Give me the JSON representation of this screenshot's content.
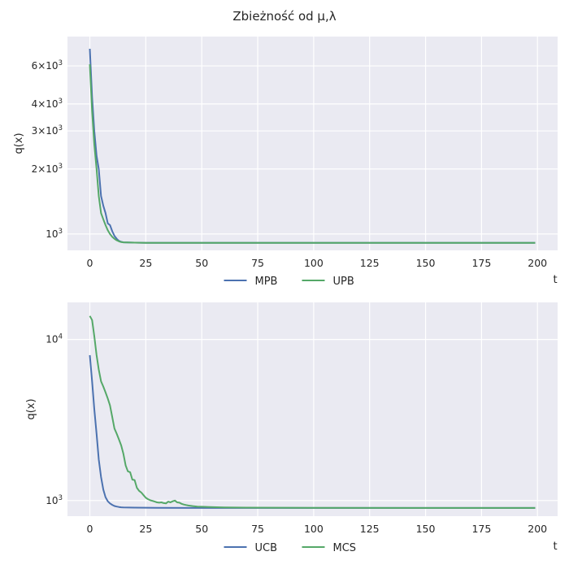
{
  "figure": {
    "title": "Zbieżność od μ,λ"
  },
  "chart_data": [
    {
      "type": "line",
      "yscale": "log",
      "xlabel": "t",
      "ylabel": "q(x)",
      "xlim": [
        -10,
        209
      ],
      "ylim": [
        840,
        8200
      ],
      "xticks": [
        0,
        25,
        50,
        75,
        100,
        125,
        150,
        175,
        200
      ],
      "yticks": [
        {
          "value": 6000,
          "mant": "6×10",
          "exp": "3"
        },
        {
          "value": 4000,
          "mant": "4×10",
          "exp": "3"
        },
        {
          "value": 3000,
          "mant": "3×10",
          "exp": "3"
        },
        {
          "value": 2000,
          "mant": "2×10",
          "exp": "3"
        },
        {
          "value": 1000,
          "mant": "10",
          "exp": "3"
        }
      ],
      "grid": true,
      "legend_position": "below",
      "series": [
        {
          "name": "MPB",
          "color": "#4c72b0",
          "points": [
            [
              0,
              7200
            ],
            [
              1,
              4300
            ],
            [
              2,
              3000
            ],
            [
              3,
              2300
            ],
            [
              4,
              2000
            ],
            [
              5,
              1500
            ],
            [
              6,
              1350
            ],
            [
              7,
              1250
            ],
            [
              8,
              1120
            ],
            [
              9,
              1100
            ],
            [
              10,
              1030
            ],
            [
              11,
              980
            ],
            [
              12,
              950
            ],
            [
              13,
              930
            ],
            [
              14,
              920
            ],
            [
              15,
              915
            ],
            [
              20,
              912
            ],
            [
              25,
              910
            ],
            [
              50,
              910
            ],
            [
              100,
              910
            ],
            [
              150,
              910
            ],
            [
              199,
              910
            ]
          ]
        },
        {
          "name": "UPB",
          "color": "#55a868",
          "points": [
            [
              0,
              6100
            ],
            [
              1,
              3700
            ],
            [
              2,
              2600
            ],
            [
              3,
              2000
            ],
            [
              4,
              1500
            ],
            [
              5,
              1250
            ],
            [
              6,
              1170
            ],
            [
              7,
              1100
            ],
            [
              8,
              1040
            ],
            [
              9,
              1000
            ],
            [
              10,
              970
            ],
            [
              11,
              950
            ],
            [
              12,
              935
            ],
            [
              13,
              925
            ],
            [
              14,
              918
            ],
            [
              15,
              915
            ],
            [
              20,
              912
            ],
            [
              25,
              910
            ],
            [
              50,
              910
            ],
            [
              100,
              910
            ],
            [
              150,
              910
            ],
            [
              199,
              910
            ]
          ]
        }
      ]
    },
    {
      "type": "line",
      "yscale": "log",
      "xlabel": "t",
      "ylabel": "q(x)",
      "xlim": [
        -10,
        209
      ],
      "ylim": [
        800,
        17000
      ],
      "xticks": [
        0,
        25,
        50,
        75,
        100,
        125,
        150,
        175,
        200
      ],
      "yticks": [
        {
          "value": 10000,
          "mant": "10",
          "exp": "4"
        },
        {
          "value": 1000,
          "mant": "10",
          "exp": "3"
        }
      ],
      "grid": true,
      "legend_position": "below",
      "series": [
        {
          "name": "UCB",
          "color": "#4c72b0",
          "points": [
            [
              0,
              8000
            ],
            [
              1,
              5500
            ],
            [
              2,
              3700
            ],
            [
              3,
              2600
            ],
            [
              4,
              1800
            ],
            [
              5,
              1400
            ],
            [
              6,
              1170
            ],
            [
              7,
              1050
            ],
            [
              8,
              990
            ],
            [
              9,
              960
            ],
            [
              10,
              940
            ],
            [
              11,
              925
            ],
            [
              12,
              918
            ],
            [
              13,
              912
            ],
            [
              14,
              908
            ],
            [
              15,
              906
            ],
            [
              20,
              904
            ],
            [
              30,
              902
            ],
            [
              50,
              900
            ],
            [
              100,
              900
            ],
            [
              150,
              900
            ],
            [
              199,
              900
            ]
          ]
        },
        {
          "name": "MCS",
          "color": "#55a868",
          "points": [
            [
              0,
              14000
            ],
            [
              1,
              13200
            ],
            [
              2,
              10500
            ],
            [
              3,
              8000
            ],
            [
              4,
              6500
            ],
            [
              5,
              5500
            ],
            [
              6,
              5100
            ],
            [
              7,
              4700
            ],
            [
              8,
              4300
            ],
            [
              9,
              3900
            ],
            [
              10,
              3300
            ],
            [
              11,
              2800
            ],
            [
              12,
              2600
            ],
            [
              13,
              2400
            ],
            [
              14,
              2200
            ],
            [
              15,
              1950
            ],
            [
              16,
              1650
            ],
            [
              17,
              1520
            ],
            [
              18,
              1500
            ],
            [
              19,
              1350
            ],
            [
              20,
              1340
            ],
            [
              21,
              1200
            ],
            [
              22,
              1150
            ],
            [
              23,
              1120
            ],
            [
              24,
              1080
            ],
            [
              25,
              1040
            ],
            [
              26,
              1020
            ],
            [
              27,
              1005
            ],
            [
              28,
              995
            ],
            [
              29,
              985
            ],
            [
              30,
              975
            ],
            [
              31,
              970
            ],
            [
              32,
              975
            ],
            [
              33,
              965
            ],
            [
              34,
              960
            ],
            [
              35,
              985
            ],
            [
              36,
              975
            ],
            [
              37,
              990
            ],
            [
              38,
              1000
            ],
            [
              39,
              975
            ],
            [
              40,
              970
            ],
            [
              41,
              955
            ],
            [
              42,
              945
            ],
            [
              43,
              938
            ],
            [
              44,
              932
            ],
            [
              45,
              928
            ],
            [
              46,
              924
            ],
            [
              48,
              918
            ],
            [
              50,
              915
            ],
            [
              55,
              910
            ],
            [
              60,
              907
            ],
            [
              70,
              904
            ],
            [
              100,
              902
            ],
            [
              150,
              900
            ],
            [
              199,
              900
            ]
          ]
        }
      ]
    }
  ]
}
